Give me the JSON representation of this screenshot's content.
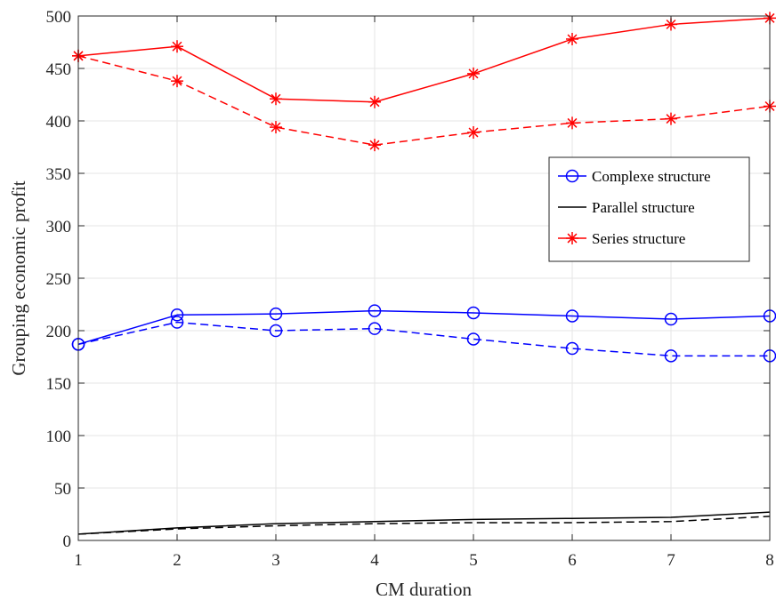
{
  "chart_data": {
    "type": "line",
    "title": "",
    "xlabel": "CM duration",
    "ylabel": "Grouping economic profit",
    "x": [
      1,
      2,
      3,
      4,
      5,
      6,
      7,
      8
    ],
    "xlim": [
      1,
      8
    ],
    "ylim": [
      0,
      500
    ],
    "xticks": [
      "1",
      "2",
      "3",
      "4",
      "5",
      "6",
      "7",
      "8"
    ],
    "yticks": [
      "0",
      "50",
      "100",
      "150",
      "200",
      "250",
      "300",
      "350",
      "400",
      "450",
      "500"
    ],
    "grid": true,
    "legend_position": "right",
    "series": [
      {
        "name": "Complexe structure",
        "color": "#0000ff",
        "marker": "circle",
        "linestyle": "solid",
        "in_legend": true,
        "values": [
          187,
          215,
          216,
          219,
          217,
          214,
          211,
          214
        ]
      },
      {
        "name": "Complexe structure",
        "color": "#0000ff",
        "marker": "circle",
        "linestyle": "dashed",
        "in_legend": false,
        "values": [
          187,
          208,
          200,
          202,
          192,
          183,
          176,
          176
        ]
      },
      {
        "name": "Parallel structure",
        "color": "#000000",
        "marker": "none",
        "linestyle": "solid",
        "in_legend": true,
        "values": [
          6,
          12,
          16,
          18,
          20,
          21,
          22,
          27
        ]
      },
      {
        "name": "Parallel structure",
        "color": "#000000",
        "marker": "none",
        "linestyle": "dashed",
        "in_legend": false,
        "values": [
          6,
          11,
          14,
          16,
          17,
          17,
          18,
          23
        ]
      },
      {
        "name": "Series structure",
        "color": "#ff0000",
        "marker": "asterisk",
        "linestyle": "solid",
        "in_legend": true,
        "values": [
          462,
          471,
          421,
          418,
          445,
          478,
          492,
          498
        ]
      },
      {
        "name": "Series structure",
        "color": "#ff0000",
        "marker": "asterisk",
        "linestyle": "dashed",
        "in_legend": false,
        "values": [
          462,
          438,
          394,
          377,
          389,
          398,
          402,
          414
        ]
      }
    ]
  }
}
